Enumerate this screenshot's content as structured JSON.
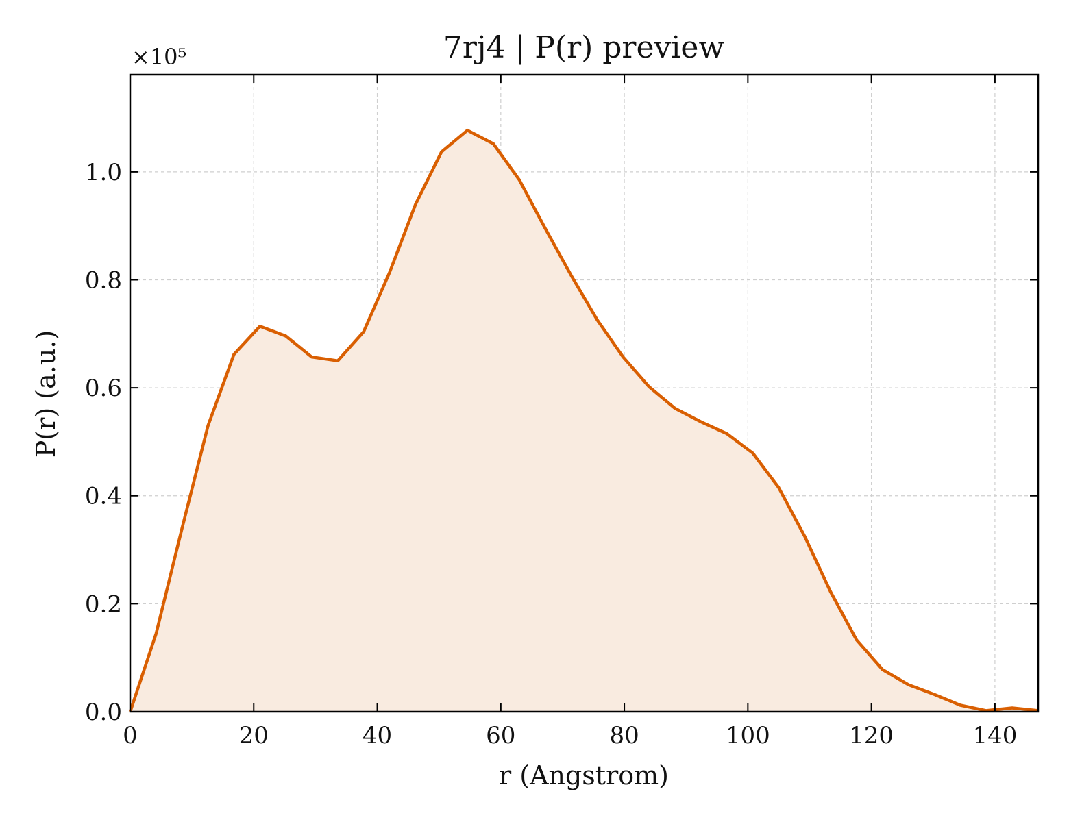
{
  "chart_data": {
    "type": "area",
    "title": "7rj4 | P(r) preview",
    "xlabel": "r (Angstrom)",
    "ylabel": "P(r) (a.u.)",
    "y_multiplier_label": "×10⁵",
    "xlim": [
      0,
      147
    ],
    "ylim": [
      0,
      1.18
    ],
    "xticks": [
      0,
      20,
      40,
      60,
      80,
      100,
      120,
      140
    ],
    "xtick_labels": [
      "0",
      "20",
      "40",
      "60",
      "80",
      "100",
      "120",
      "140"
    ],
    "yticks": [
      0.0,
      0.2,
      0.4,
      0.6,
      0.8,
      1.0
    ],
    "ytick_labels": [
      "0.0",
      "0.2",
      "0.4",
      "0.6",
      "0.8",
      "1.0"
    ],
    "grid": true,
    "line_color": "#d95f02",
    "fill_color": "#f9ebe0",
    "series": [
      {
        "x": [
          0,
          4.2,
          8.4,
          12.6,
          16.8,
          21.0,
          25.2,
          29.4,
          33.6,
          37.8,
          42.0,
          46.2,
          50.4,
          54.6,
          58.8,
          63.0,
          67.2,
          71.4,
          75.6,
          79.8,
          84.0,
          88.2,
          92.4,
          96.6,
          100.8,
          105.0,
          109.2,
          113.4,
          117.6,
          121.8,
          126.0,
          130.2,
          134.4,
          138.6,
          142.8,
          147.0
        ],
        "y": [
          0.0,
          0.145,
          0.34,
          0.53,
          0.662,
          0.714,
          0.696,
          0.657,
          0.65,
          0.704,
          0.814,
          0.94,
          1.037,
          1.077,
          1.052,
          0.985,
          0.895,
          0.808,
          0.726,
          0.657,
          0.602,
          0.562,
          0.537,
          0.515,
          0.479,
          0.415,
          0.325,
          0.222,
          0.133,
          0.078,
          0.05,
          0.032,
          0.012,
          0.002,
          0.007,
          0.002
        ]
      }
    ]
  }
}
